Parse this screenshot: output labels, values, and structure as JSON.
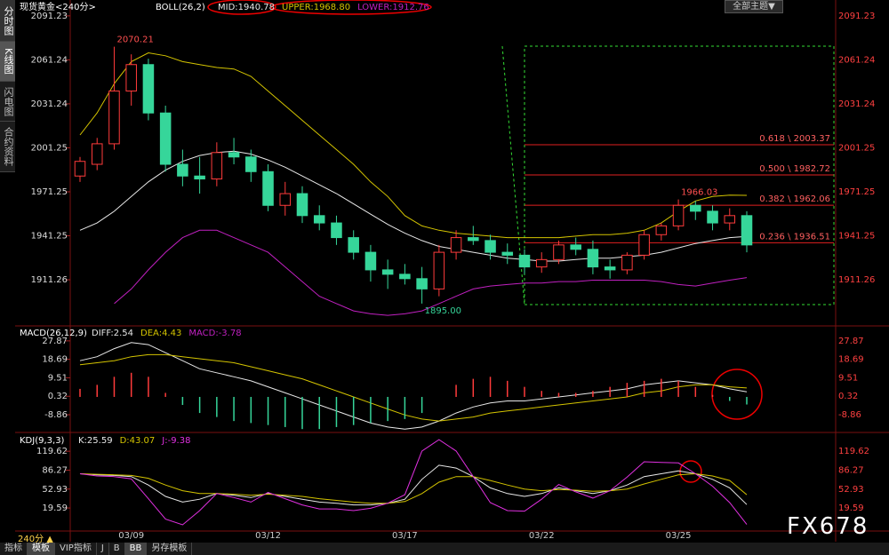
{
  "chart_data": [
    {
      "type": "candlestick",
      "title": "现货黄金<240分>",
      "indicator": "BOLL(26,2)",
      "candles": {
        "open": [
          1982,
          1990,
          2004,
          2040,
          2058,
          2025,
          1990,
          1982,
          1980,
          1998,
          1995,
          1985,
          1962,
          1970,
          1955,
          1950,
          1940,
          1930,
          1918,
          1915,
          1912,
          1905,
          1930,
          1940,
          1938,
          1930,
          1928,
          1920,
          1925,
          1935,
          1932,
          1920,
          1918,
          1928,
          1942,
          1948,
          1962,
          1958,
          1950,
          1955
        ],
        "high": [
          1995,
          2008,
          2070.21,
          2065,
          2062,
          2030,
          2000,
          1995,
          2005,
          2008,
          2000,
          1990,
          1978,
          1975,
          1962,
          1955,
          1945,
          1935,
          1925,
          1922,
          1920,
          1935,
          1945,
          1948,
          1942,
          1936,
          1932,
          1930,
          1938,
          1940,
          1938,
          1925,
          1930,
          1945,
          1950,
          1966.03,
          1965,
          1962,
          1960,
          1958
        ],
        "low": [
          1978,
          1986,
          2000,
          2030,
          2020,
          1985,
          1975,
          1970,
          1975,
          1990,
          1978,
          1958,
          1955,
          1950,
          1945,
          1935,
          1925,
          1910,
          1905,
          1908,
          1895,
          1900,
          1925,
          1935,
          1925,
          1922,
          1915,
          1916,
          1922,
          1928,
          1915,
          1912,
          1915,
          1925,
          1938,
          1945,
          1952,
          1945,
          1945,
          1930
        ],
        "close": [
          1992,
          2004,
          2040,
          2058,
          2025,
          1990,
          1982,
          1980,
          1998,
          1995,
          1985,
          1962,
          1970,
          1955,
          1950,
          1940,
          1930,
          1918,
          1915,
          1912,
          1905,
          1930,
          1940,
          1938,
          1930,
          1928,
          1920,
          1925,
          1935,
          1932,
          1920,
          1918,
          1928,
          1942,
          1948,
          1962,
          1958,
          1950,
          1955,
          1935
        ]
      },
      "up_color": "#ff3b3b",
      "down_color": "#36d69a",
      "series": [
        {
          "name": "MID:1940.78",
          "color": "#e8e8e8",
          "values": [
            1945,
            1950,
            1958,
            1968,
            1978,
            1986,
            1992,
            1996,
            1998,
            1999,
            1997,
            1993,
            1988,
            1982,
            1976,
            1970,
            1963,
            1956,
            1949,
            1943,
            1938,
            1934,
            1932,
            1930,
            1928,
            1926,
            1925,
            1924,
            1924,
            1925,
            1926,
            1926,
            1927,
            1928,
            1930,
            1933,
            1936,
            1938,
            1940,
            1940.78
          ]
        },
        {
          "name": "UPPER:1968.80",
          "color": "#d4c400",
          "values": [
            2010,
            2025,
            2045,
            2060,
            2066,
            2064,
            2060,
            2058,
            2056,
            2055,
            2050,
            2040,
            2030,
            2020,
            2010,
            2000,
            1990,
            1978,
            1968,
            1955,
            1948,
            1945,
            1943,
            1942,
            1941,
            1940,
            1940,
            1940,
            1940,
            1941,
            1942,
            1942,
            1943,
            1945,
            1950,
            1958,
            1965,
            1968,
            1969,
            1968.8
          ]
        },
        {
          "name": "LOWER:1912.76",
          "color": "#c020c0",
          "values": [
            null,
            null,
            1895,
            1905,
            1918,
            1930,
            1940,
            1945,
            1945,
            1940,
            1935,
            1930,
            1920,
            1910,
            1900,
            1895,
            1890,
            1888,
            1887,
            1888,
            1890,
            1895,
            1900,
            1905,
            1907,
            1908,
            1909,
            1909,
            1910,
            1910,
            1911,
            1911,
            1911,
            1911,
            1910,
            1908,
            1907,
            1909,
            1911,
            1912.76
          ]
        }
      ],
      "fib_levels": [
        {
          "value": 2003.37,
          "label": "0.618 \\ 2003.37"
        },
        {
          "value": 1982.72,
          "label": "0.500 \\ 1982.72"
        },
        {
          "value": 1962.06,
          "label": "0.382 \\ 1962.06"
        },
        {
          "value": 1936.51,
          "label": "0.236 \\ 1936.51"
        }
      ],
      "fib_color": "#e02020",
      "annotations": [
        {
          "value": 2070.21,
          "label": "2070.21",
          "color": "#ff5050"
        },
        {
          "value": 1895,
          "label": "1895.00",
          "color": "#36d69a"
        },
        {
          "value": 1966.03,
          "label": "1966.03",
          "color": "#ff5050"
        }
      ],
      "ylim": [
        1881,
        2096
      ],
      "yticks": [
        2091.23,
        2061.24,
        2031.24,
        2001.25,
        1971.25,
        1941.25,
        1911.26
      ]
    },
    {
      "type": "macd",
      "title": "MACD(26,12,9)",
      "series": [
        {
          "name": "DIFF:2.54",
          "color": "#e8e8e8",
          "values": [
            18,
            20,
            24,
            27,
            26,
            22,
            18,
            14,
            12,
            10,
            8,
            5,
            2,
            -1,
            -4,
            -7,
            -10,
            -13,
            -15,
            -16,
            -15,
            -12,
            -8,
            -5,
            -3,
            -2,
            -2,
            -1,
            0,
            1,
            2,
            3,
            4,
            6,
            7,
            8,
            7,
            6,
            4,
            2.54
          ]
        },
        {
          "name": "DEA:4.43",
          "color": "#d4c400",
          "values": [
            16,
            17,
            18,
            20,
            21,
            21,
            20,
            19,
            18,
            17,
            15,
            13,
            11,
            9,
            6,
            3,
            0,
            -3,
            -6,
            -9,
            -11,
            -12,
            -11,
            -10,
            -8,
            -7,
            -6,
            -5,
            -4,
            -3,
            -2,
            -1,
            0,
            2,
            3,
            5,
            6,
            6,
            5,
            4.43
          ]
        },
        {
          "name": "MACD:-3.78",
          "color": "#c020c0",
          "bar": true,
          "up_color": "#ff3b3b",
          "down_color": "#36d69a",
          "values": [
            4,
            6,
            10,
            12,
            10,
            2,
            -4,
            -8,
            -10,
            -12,
            -13,
            -14,
            -15,
            -16,
            -16,
            -15,
            -14,
            -13,
            -12,
            -11,
            -8,
            0,
            6,
            9,
            10,
            8,
            5,
            3,
            2,
            2,
            3,
            5,
            7,
            8,
            9,
            8,
            5,
            1,
            -2,
            -3.78
          ]
        }
      ],
      "ylim": [
        -16.8,
        34
      ],
      "yticks": [
        27.87,
        18.69,
        9.51,
        0.32,
        -8.86
      ]
    },
    {
      "type": "kdj",
      "title": "KDJ(9,3,3)",
      "series": [
        {
          "name": "K:25.59",
          "color": "#e8e8e8",
          "values": [
            80,
            78,
            77,
            75,
            60,
            40,
            30,
            35,
            45,
            42,
            38,
            45,
            40,
            35,
            30,
            28,
            25,
            25,
            28,
            35,
            70,
            95,
            90,
            75,
            55,
            45,
            40,
            45,
            55,
            50,
            45,
            50,
            60,
            75,
            80,
            85,
            80,
            70,
            55,
            25.59
          ]
        },
        {
          "name": "D:43.07",
          "color": "#d4c400",
          "values": [
            80,
            79,
            78,
            77,
            72,
            60,
            50,
            45,
            45,
            44,
            42,
            44,
            42,
            40,
            36,
            33,
            30,
            28,
            28,
            31,
            45,
            65,
            75,
            75,
            68,
            60,
            53,
            50,
            52,
            51,
            49,
            50,
            53,
            62,
            70,
            78,
            80,
            76,
            68,
            43.07
          ]
        },
        {
          "name": "J:-9.38",
          "color": "#e030e0",
          "values": [
            80,
            76,
            75,
            71,
            36,
            0,
            -10,
            15,
            45,
            38,
            30,
            47,
            36,
            25,
            18,
            18,
            15,
            19,
            28,
            43,
            120,
            140,
            120,
            75,
            29,
            15,
            14,
            35,
            61,
            48,
            37,
            50,
            74,
            101,
            100,
            99,
            80,
            58,
            29,
            -9.38
          ]
        }
      ],
      "ylim": [
        -21,
        148
      ],
      "yticks": [
        119.62,
        86.27,
        52.93,
        19.59
      ],
      "categories": [
        null,
        null,
        null,
        "03/09",
        null,
        null,
        null,
        null,
        null,
        null,
        null,
        "03/12",
        null,
        null,
        null,
        null,
        null,
        null,
        null,
        "03/17",
        null,
        null,
        null,
        null,
        null,
        null,
        null,
        "03/22",
        null,
        null,
        null,
        null,
        null,
        null,
        null,
        "03/25",
        null,
        null,
        null,
        null
      ]
    }
  ],
  "ui": {
    "sidebar": [
      "分时图",
      "K线图",
      "闪电图",
      "合约资料"
    ],
    "period": "240分 ▲",
    "theme": "全部主题▼",
    "tabs": [
      "指标",
      "模板",
      "VIP指标",
      "J",
      "B",
      "BB",
      "另存模板"
    ],
    "watermark": "FX678"
  }
}
